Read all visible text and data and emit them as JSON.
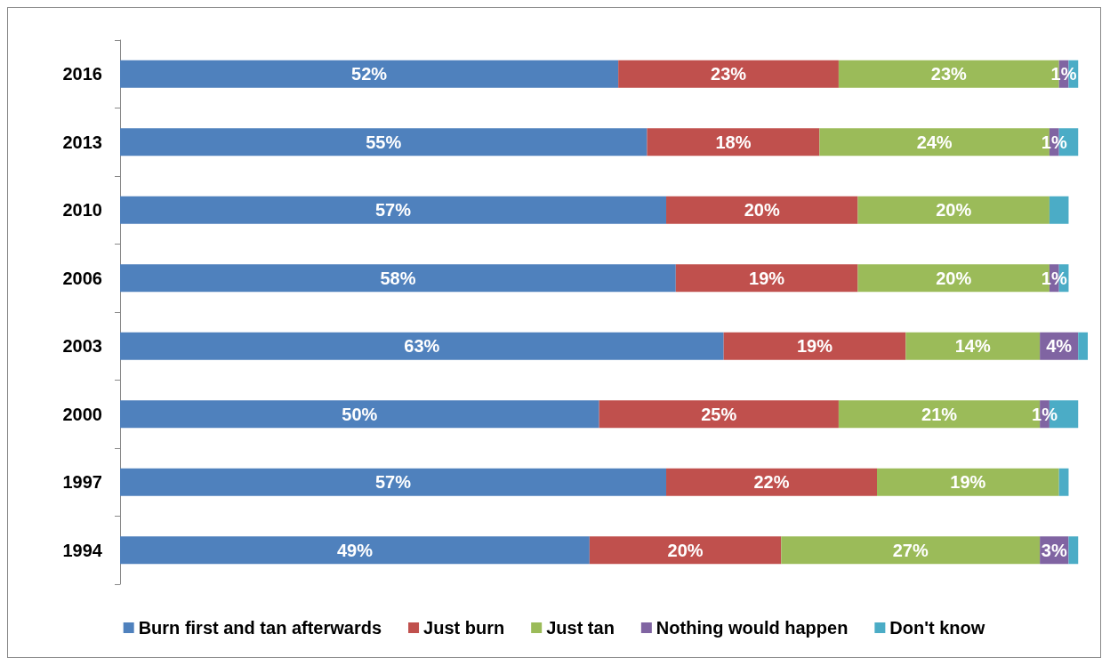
{
  "chart_data": {
    "type": "bar",
    "orientation": "horizontal",
    "stacked": true,
    "categories": [
      "2016",
      "2013",
      "2010",
      "2006",
      "2003",
      "2000",
      "1997",
      "1994"
    ],
    "xlim": [
      0,
      101
    ],
    "tick_labels": "y",
    "grid": false,
    "legend": "bottom",
    "series": [
      {
        "name": "Burn first and tan afterwards",
        "color": "#4f81bd",
        "values": [
          52,
          55,
          57,
          58,
          63,
          50,
          57,
          49
        ],
        "value_labels": [
          "52%",
          "55%",
          "57%",
          "58%",
          "63%",
          "50%",
          "57%",
          "49%"
        ]
      },
      {
        "name": "Just burn",
        "color": "#c0504d",
        "values": [
          23,
          18,
          20,
          19,
          19,
          25,
          22,
          20
        ],
        "value_labels": [
          "23%",
          "18%",
          "20%",
          "19%",
          "19%",
          "25%",
          "22%",
          "20%"
        ]
      },
      {
        "name": "Just tan",
        "color": "#9bbb59",
        "values": [
          23,
          24,
          20,
          20,
          14,
          21,
          19,
          27
        ],
        "value_labels": [
          "23%",
          "24%",
          "20%",
          "20%",
          "14%",
          "21%",
          "19%",
          "27%"
        ]
      },
      {
        "name": "Nothing would happen",
        "color": "#8064a2",
        "values": [
          1,
          1,
          null,
          1,
          4,
          1,
          null,
          3
        ],
        "value_labels": [
          "1%",
          "1%",
          null,
          "1%",
          "4%",
          "1%",
          null,
          "3%"
        ]
      },
      {
        "name": "Don't know",
        "color": "#4bacc6",
        "values": [
          1,
          2,
          2,
          1,
          1,
          3,
          1,
          1
        ],
        "value_labels": [
          null,
          null,
          null,
          null,
          null,
          null,
          null,
          null
        ]
      }
    ]
  }
}
